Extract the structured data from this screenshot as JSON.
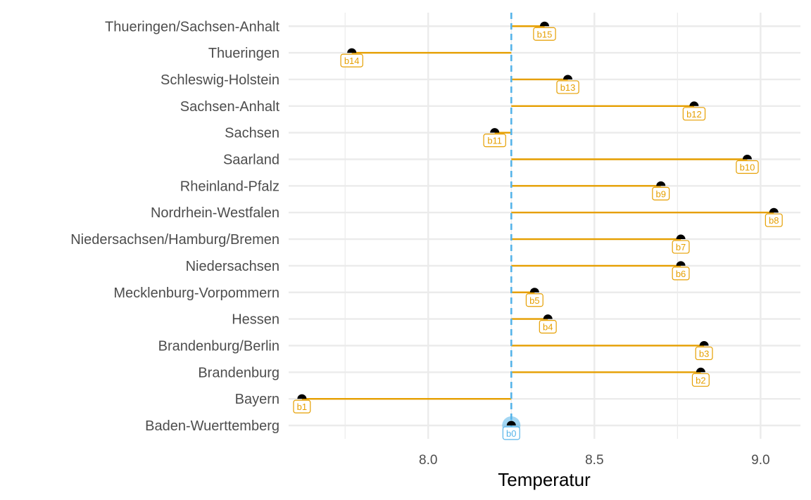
{
  "chart_data": {
    "type": "lollipop",
    "xlabel": "Temperatur",
    "ylabel": "",
    "xlim": [
      7.58,
      9.12
    ],
    "x_ticks": [
      8.0,
      8.5,
      9.0
    ],
    "x_tick_labels": [
      "8.0",
      "8.5",
      "9.0"
    ],
    "minor_x_ticks": [
      7.75,
      8.25,
      8.75
    ],
    "grid": true,
    "baseline": 8.25,
    "categories": [
      "Baden-Wuerttemberg",
      "Bayern",
      "Brandenburg",
      "Brandenburg/Berlin",
      "Hessen",
      "Mecklenburg-Vorpommern",
      "Niedersachsen",
      "Niedersachsen/Hamburg/Bremen",
      "Nordrhein-Westfalen",
      "Rheinland-Pfalz",
      "Saarland",
      "Sachsen",
      "Sachsen-Anhalt",
      "Schleswig-Holstein",
      "Thueringen",
      "Thueringen/Sachsen-Anhalt"
    ],
    "values": [
      8.25,
      7.62,
      8.82,
      8.83,
      8.36,
      8.32,
      8.76,
      8.76,
      9.04,
      8.7,
      8.96,
      8.2,
      8.8,
      8.42,
      7.77,
      8.35
    ],
    "labels": [
      "b0",
      "b1",
      "b2",
      "b3",
      "b4",
      "b5",
      "b6",
      "b7",
      "b8",
      "b9",
      "b10",
      "b11",
      "b12",
      "b13",
      "b14",
      "b15"
    ],
    "colors": {
      "segment": "#E69F00",
      "baseline": "#56B4E9",
      "point": "#000000",
      "grid": "#EBEBEB",
      "highlight": "#56B4E9"
    }
  }
}
